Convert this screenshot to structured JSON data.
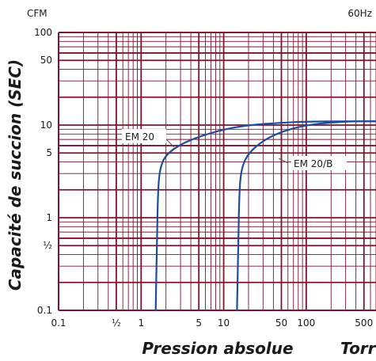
{
  "chart_data": {
    "type": "line",
    "x_scale": "log",
    "y_scale": "log",
    "xlim": [
      0.1,
      700
    ],
    "ylim": [
      0.1,
      100
    ],
    "grid": true,
    "xlabel": "Pression absolue",
    "x_unit": "Torr",
    "ylabel": "Capacité de succion (SEC)",
    "y_unit": "CFM",
    "frequency_label": "60Hz",
    "x_ticks": [
      {
        "value": 0.1,
        "label": "0.1"
      },
      {
        "value": 0.5,
        "label": "½"
      },
      {
        "value": 1,
        "label": "1"
      },
      {
        "value": 5,
        "label": "5"
      },
      {
        "value": 10,
        "label": "10"
      },
      {
        "value": 50,
        "label": "50"
      },
      {
        "value": 100,
        "label": "100"
      },
      {
        "value": 500,
        "label": "500"
      }
    ],
    "y_ticks": [
      {
        "value": 100,
        "label": "100"
      },
      {
        "value": 50,
        "label": "50"
      },
      {
        "value": 10,
        "label": "10"
      },
      {
        "value": 5,
        "label": "5"
      },
      {
        "value": 1,
        "label": "1"
      },
      {
        "value": 0.5,
        "label": "½"
      },
      {
        "value": 0.1,
        "label": "0.1"
      }
    ],
    "series": [
      {
        "name": "EM 20",
        "color": "#1f4e99",
        "points": [
          [
            1.5,
            0.1
          ],
          [
            1.55,
            0.5
          ],
          [
            1.6,
            2
          ],
          [
            1.7,
            3.5
          ],
          [
            2,
            4.8
          ],
          [
            3,
            6.2
          ],
          [
            5,
            7.5
          ],
          [
            10,
            9
          ],
          [
            20,
            10
          ],
          [
            50,
            10.6
          ],
          [
            100,
            10.9
          ],
          [
            300,
            11
          ],
          [
            700,
            11
          ]
        ]
      },
      {
        "name": "EM 20/B",
        "color": "#1f4e99",
        "points": [
          [
            14.5,
            0.1
          ],
          [
            15,
            0.5
          ],
          [
            15.5,
            2
          ],
          [
            16.5,
            3.5
          ],
          [
            20,
            5
          ],
          [
            30,
            6.8
          ],
          [
            50,
            8.5
          ],
          [
            100,
            10
          ],
          [
            200,
            10.7
          ],
          [
            400,
            11
          ],
          [
            700,
            11
          ]
        ]
      }
    ],
    "annotations": [
      {
        "text": "EM 20",
        "series": 0
      },
      {
        "text": "EM 20/B",
        "series": 1
      }
    ]
  }
}
